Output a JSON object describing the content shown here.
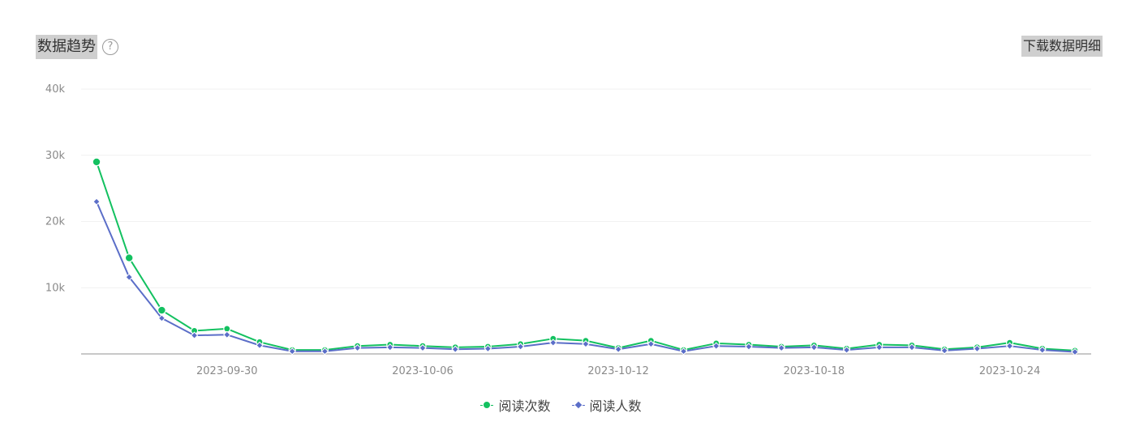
{
  "header": {
    "title": "数据趋势",
    "help_glyph": "?",
    "help_icon": "question-circle-icon",
    "download_label": "下载数据明细"
  },
  "chart_data": {
    "type": "line",
    "y_ticks": [
      "40k",
      "30k",
      "20k",
      "10k"
    ],
    "x_tick_labels": [
      "2023-09-30",
      "2023-10-06",
      "2023-10-12",
      "2023-10-18",
      "2023-10-24"
    ],
    "x_tick_indices": [
      4,
      10,
      16,
      22,
      28
    ],
    "ylim": [
      0,
      40000
    ],
    "grid": true,
    "legend_position": "bottom",
    "series": [
      {
        "name": "阅读次数",
        "color": "#13c160",
        "marker": "circle",
        "values": [
          29000,
          14500,
          6600,
          3500,
          3800,
          1800,
          600,
          600,
          1200,
          1400,
          1200,
          1000,
          1100,
          1500,
          2300,
          2000,
          900,
          2000,
          600,
          1600,
          1400,
          1100,
          1300,
          800,
          1400,
          1300,
          700,
          1000,
          1700,
          800,
          500
        ]
      },
      {
        "name": "阅读人数",
        "color": "#5b6ec8",
        "marker": "diamond",
        "values": [
          23000,
          11600,
          5400,
          2800,
          2900,
          1300,
          400,
          400,
          900,
          1000,
          900,
          700,
          800,
          1100,
          1700,
          1500,
          700,
          1500,
          400,
          1200,
          1100,
          900,
          1000,
          600,
          1000,
          1000,
          500,
          800,
          1200,
          600,
          300
        ]
      }
    ]
  }
}
